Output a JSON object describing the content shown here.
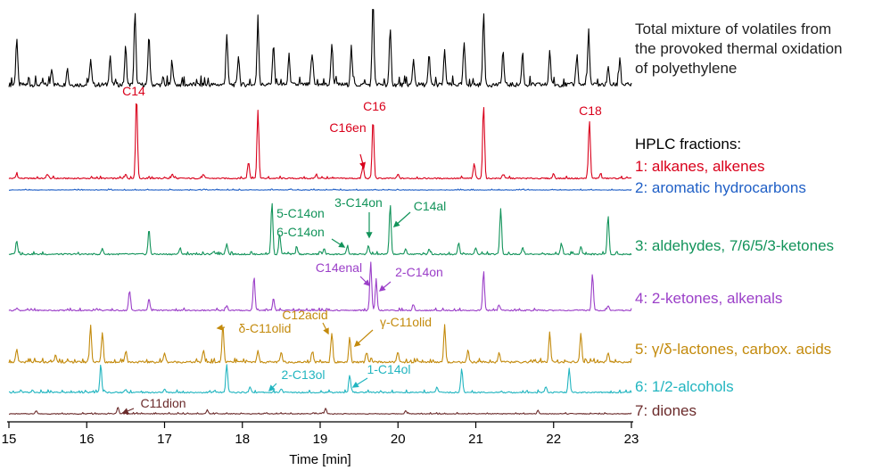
{
  "chart_data": {
    "type": "line",
    "xlabel": "Time [min]",
    "xlim": [
      15,
      23
    ],
    "x_ticks": [
      "15",
      "16",
      "17",
      "18",
      "19",
      "20",
      "21",
      "22",
      "23"
    ],
    "header_lines": [
      "Total mixture of volatiles from",
      "the provoked thermal oxidation",
      "of polyethylene"
    ],
    "fractions_heading": "HPLC fractions:",
    "series": [
      {
        "name": "Total mixture of volatiles from the provoked thermal oxidation of polyethylene",
        "color": "#000000",
        "peaks": [
          [
            15.1,
            0.55
          ],
          [
            15.55,
            0.2
          ],
          [
            15.75,
            0.2
          ],
          [
            16.05,
            0.3
          ],
          [
            16.3,
            0.35
          ],
          [
            16.5,
            0.45
          ],
          [
            16.62,
            0.85
          ],
          [
            16.8,
            0.6
          ],
          [
            17.1,
            0.25
          ],
          [
            17.8,
            0.6
          ],
          [
            17.95,
            0.35
          ],
          [
            18.2,
            0.75
          ],
          [
            18.4,
            0.5
          ],
          [
            18.6,
            0.35
          ],
          [
            18.9,
            0.35
          ],
          [
            19.15,
            0.5
          ],
          [
            19.4,
            0.45
          ],
          [
            19.68,
            1.0
          ],
          [
            19.9,
            0.65
          ],
          [
            20.2,
            0.3
          ],
          [
            20.4,
            0.35
          ],
          [
            20.6,
            0.4
          ],
          [
            20.85,
            0.5
          ],
          [
            21.1,
            0.85
          ],
          [
            21.35,
            0.4
          ],
          [
            21.6,
            0.35
          ],
          [
            21.95,
            0.4
          ],
          [
            22.3,
            0.35
          ],
          [
            22.45,
            0.65
          ],
          [
            22.7,
            0.2
          ],
          [
            22.85,
            0.25
          ]
        ]
      },
      {
        "name": "1: alkanes, alkenes",
        "color": "#d9001b",
        "peaks": [
          [
            15.1,
            0.05
          ],
          [
            15.5,
            0.04
          ],
          [
            16.5,
            0.05
          ],
          [
            16.64,
            1.0
          ],
          [
            17.1,
            0.05
          ],
          [
            17.5,
            0.05
          ],
          [
            18.08,
            0.2
          ],
          [
            18.2,
            0.82
          ],
          [
            18.95,
            0.05
          ],
          [
            19.55,
            0.15
          ],
          [
            19.68,
            0.72
          ],
          [
            20.0,
            0.05
          ],
          [
            20.98,
            0.18
          ],
          [
            21.1,
            0.88
          ],
          [
            21.35,
            0.05
          ],
          [
            22.0,
            0.06
          ],
          [
            22.46,
            0.7
          ],
          [
            22.6,
            0.05
          ]
        ]
      },
      {
        "name": "2: aromatic hydrocarbons",
        "color": "#1f5fc6",
        "peaks": [
          [
            16.3,
            0.04
          ],
          [
            18.6,
            0.04
          ],
          [
            21.6,
            0.05
          ]
        ]
      },
      {
        "name": "3: aldehydes, 7/6/5/3-ketones",
        "color": "#12935a",
        "peaks": [
          [
            15.1,
            0.25
          ],
          [
            16.2,
            0.1
          ],
          [
            16.8,
            0.45
          ],
          [
            17.2,
            0.1
          ],
          [
            17.8,
            0.2
          ],
          [
            18.38,
            0.95
          ],
          [
            18.48,
            0.35
          ],
          [
            18.7,
            0.12
          ],
          [
            19.05,
            0.1
          ],
          [
            19.35,
            0.12
          ],
          [
            19.62,
            0.15
          ],
          [
            19.9,
            0.9
          ],
          [
            20.1,
            0.1
          ],
          [
            20.4,
            0.1
          ],
          [
            20.78,
            0.2
          ],
          [
            21.0,
            0.12
          ],
          [
            21.32,
            0.82
          ],
          [
            21.6,
            0.12
          ],
          [
            22.1,
            0.2
          ],
          [
            22.35,
            0.15
          ],
          [
            22.7,
            0.7
          ]
        ]
      },
      {
        "name": "4: 2-ketones, alkenals",
        "color": "#9b3fc8",
        "peaks": [
          [
            15.1,
            0.05
          ],
          [
            16.55,
            0.4
          ],
          [
            16.8,
            0.25
          ],
          [
            17.8,
            0.1
          ],
          [
            18.15,
            0.7
          ],
          [
            18.4,
            0.25
          ],
          [
            19.65,
            1.0
          ],
          [
            19.72,
            0.6
          ],
          [
            20.2,
            0.1
          ],
          [
            21.1,
            0.8
          ],
          [
            21.3,
            0.1
          ],
          [
            22.5,
            0.75
          ],
          [
            22.7,
            0.1
          ]
        ]
      },
      {
        "name": "5: γ/δ-lactones, carbox. acids",
        "color": "#c38a0c",
        "peaks": [
          [
            15.1,
            0.25
          ],
          [
            15.6,
            0.15
          ],
          [
            16.05,
            0.75
          ],
          [
            16.2,
            0.6
          ],
          [
            16.5,
            0.2
          ],
          [
            17.0,
            0.2
          ],
          [
            17.5,
            0.25
          ],
          [
            17.75,
            0.75
          ],
          [
            18.2,
            0.25
          ],
          [
            18.5,
            0.2
          ],
          [
            18.9,
            0.2
          ],
          [
            19.15,
            0.6
          ],
          [
            19.38,
            0.5
          ],
          [
            19.6,
            0.2
          ],
          [
            20.0,
            0.2
          ],
          [
            20.6,
            0.75
          ],
          [
            20.9,
            0.25
          ],
          [
            21.3,
            0.2
          ],
          [
            21.95,
            0.6
          ],
          [
            22.35,
            0.6
          ],
          [
            22.7,
            0.2
          ]
        ]
      },
      {
        "name": "6: 1/2-alcohols",
        "color": "#22b5c0",
        "peaks": [
          [
            15.3,
            0.05
          ],
          [
            16.18,
            0.65
          ],
          [
            16.5,
            0.08
          ],
          [
            17.0,
            0.08
          ],
          [
            17.8,
            0.7
          ],
          [
            18.1,
            0.15
          ],
          [
            18.5,
            0.1
          ],
          [
            19.38,
            0.45
          ],
          [
            20.5,
            0.15
          ],
          [
            20.82,
            0.6
          ],
          [
            21.9,
            0.15
          ],
          [
            22.2,
            0.6
          ]
        ]
      },
      {
        "name": "7: diones",
        "color": "#6b2b2b",
        "peaks": [
          [
            15.35,
            0.15
          ],
          [
            16.4,
            0.3
          ],
          [
            17.55,
            0.15
          ],
          [
            19.07,
            0.25
          ],
          [
            20.1,
            0.15
          ],
          [
            21.8,
            0.15
          ]
        ]
      }
    ],
    "annotations": [
      {
        "text": "C14",
        "x": 16.64,
        "series": 1
      },
      {
        "text": "C16",
        "x": 19.68,
        "series": 1
      },
      {
        "text": "C16en",
        "x": 19.55,
        "series": 1
      },
      {
        "text": "C18",
        "x": 22.46,
        "series": 1
      },
      {
        "text": "3-C14on",
        "x": 19.62,
        "series": 3
      },
      {
        "text": "5-C14on",
        "x": 18.38,
        "series": 3
      },
      {
        "text": "6-C14on",
        "x": 19.35,
        "series": 3
      },
      {
        "text": "C14al",
        "x": 19.9,
        "series": 3
      },
      {
        "text": "C14enal",
        "x": 19.65,
        "series": 4
      },
      {
        "text": "2-C14on",
        "x": 19.72,
        "series": 4
      },
      {
        "text": "C12acid",
        "x": 19.15,
        "series": 5
      },
      {
        "text": "δ-C11olid",
        "x": 17.75,
        "series": 5
      },
      {
        "text": "γ-C11olid",
        "x": 19.38,
        "series": 5
      },
      {
        "text": "2-C13ol",
        "x": 18.5,
        "series": 6
      },
      {
        "text": "1-C14ol",
        "x": 19.38,
        "series": 6
      },
      {
        "text": "C11dion",
        "x": 16.4,
        "series": 7
      }
    ]
  }
}
